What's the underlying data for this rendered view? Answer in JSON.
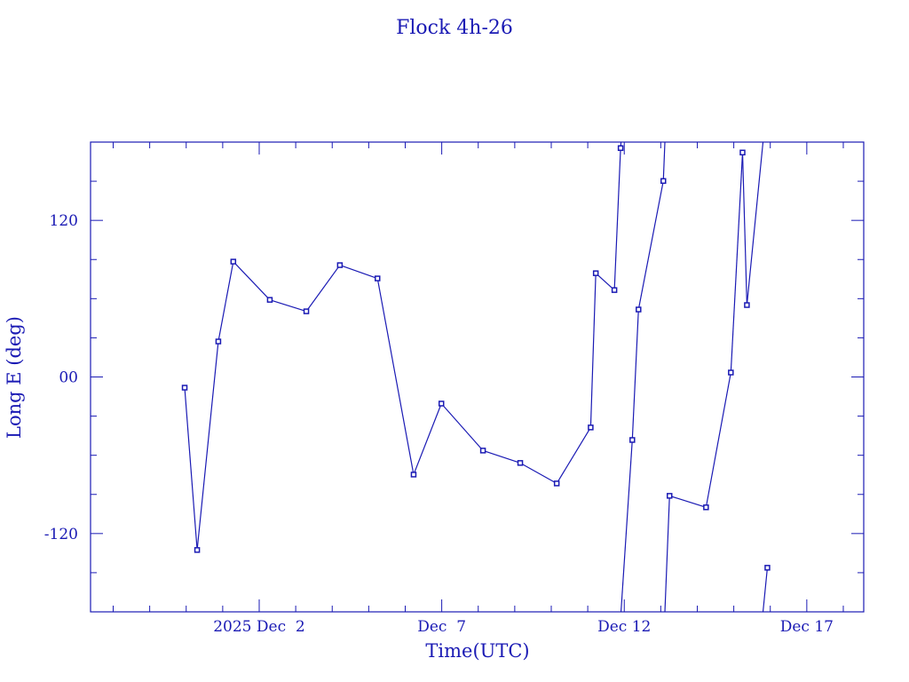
{
  "chart_data": {
    "type": "line",
    "title": "Flock 4h-26",
    "xlabel": "Time(UTC)",
    "ylabel": "Long E (deg)",
    "xlim": [
      "2025-11-27T09:07:00Z",
      "2025-12-18T13:26:00Z"
    ],
    "ylim": [
      -180,
      180
    ],
    "y_wraps_at": 180,
    "x_ticks": [
      {
        "t": "2025-12-02T00:00:00Z",
        "label": "2025 Dec  2"
      },
      {
        "t": "2025-12-07T00:00:00Z",
        "label": "Dec  7"
      },
      {
        "t": "2025-12-12T00:00:00Z",
        "label": "Dec 12"
      },
      {
        "t": "2025-12-17T00:00:00Z",
        "label": "Dec 17"
      }
    ],
    "y_ticks": [
      {
        "v": 120,
        "label": "120"
      },
      {
        "v": 0,
        "label": "00"
      },
      {
        "v": -120,
        "label": "-120"
      }
    ],
    "grid": false,
    "color": "#1a1ab4",
    "series": [
      {
        "name": "Long E",
        "points": [
          [
            "2025-11-29T23:00:00Z",
            -8.2
          ],
          [
            "2025-11-30T07:12:00Z",
            -132.6
          ],
          [
            "2025-11-30T21:07:00Z",
            27.2
          ],
          [
            "2025-12-01T06:58:00Z",
            88.4
          ],
          [
            "2025-12-02T06:58:00Z",
            59.1
          ],
          [
            "2025-12-03T06:58:00Z",
            50.3
          ],
          [
            "2025-12-04T05:02:00Z",
            85.7
          ],
          [
            "2025-12-05T05:46:00Z",
            75.5
          ],
          [
            "2025-12-06T05:31:00Z",
            -74.8
          ],
          [
            "2025-12-06T23:46:00Z",
            -20.4
          ],
          [
            "2025-12-08T03:07:00Z",
            -56.4
          ],
          [
            "2025-12-09T03:36:00Z",
            -65.9
          ],
          [
            "2025-12-10T03:36:00Z",
            -81.6
          ],
          [
            "2025-12-11T01:55:00Z",
            -38.7
          ],
          [
            "2025-12-11T05:17:00Z",
            79.5
          ],
          [
            "2025-12-11T17:31:00Z",
            66.6
          ],
          [
            "2025-12-11T21:36:00Z",
            175.4
          ],
          [
            "2025-12-12T05:17:00Z",
            -48.3
          ],
          [
            "2025-12-12T09:22:00Z",
            51.7
          ],
          [
            "2025-12-13T01:41:00Z",
            150.2
          ],
          [
            "2025-12-13T05:46:00Z",
            -91.1
          ],
          [
            "2025-12-14T05:46:00Z",
            -99.9
          ],
          [
            "2025-12-14T22:05:00Z",
            3.4
          ],
          [
            "2025-12-15T05:46:00Z",
            172.0
          ],
          [
            "2025-12-15T08:38:00Z",
            55.1
          ],
          [
            "2025-12-15T22:05:00Z",
            -146.2
          ]
        ]
      }
    ]
  }
}
